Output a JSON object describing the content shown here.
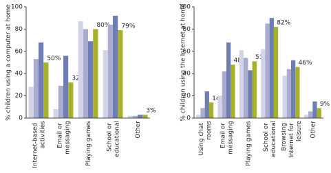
{
  "chart_data": [
    {
      "type": "bar",
      "ylabel": "% children using a computer at home",
      "categories": [
        "Internet-based activities",
        "Email or messaging",
        "Playing games",
        "School or educational",
        "Other"
      ],
      "series": [
        {
          "color": "#d4d4e8",
          "values": [
            28,
            8,
            87,
            61,
            2
          ]
        },
        {
          "color": "#a9abcf",
          "values": [
            53,
            29,
            80,
            84,
            2
          ]
        },
        {
          "color": "#6f7eb2",
          "values": [
            68,
            56,
            69,
            92,
            3
          ]
        },
        {
          "color": "#a6b128",
          "values": [
            50,
            32,
            80,
            79,
            3
          ],
          "value_labels": [
            "50%",
            "32%",
            "80%",
            "79%",
            "3%"
          ]
        }
      ],
      "ylim": [
        0,
        100
      ],
      "yticks": [
        0,
        20,
        40,
        60,
        80,
        100
      ]
    },
    {
      "type": "bar",
      "ylabel": "% children using the Internet at home",
      "categories": [
        "Using chat rooms",
        "Email or messaging",
        "Playing games",
        "School or educational",
        "Browsing Internet for leisure",
        "Other"
      ],
      "series": [
        {
          "color": "#d4d4e8",
          "values": [
            3,
            20,
            61,
            62,
            38,
            3
          ]
        },
        {
          "color": "#a9abcf",
          "values": [
            9,
            42,
            54,
            85,
            44,
            6
          ]
        },
        {
          "color": "#6f7eb2",
          "values": [
            24,
            68,
            43,
            90,
            52,
            15
          ]
        },
        {
          "color": "#a6b128",
          "values": [
            14,
            48,
            51,
            82,
            46,
            9
          ],
          "value_labels": [
            "14%",
            "48%",
            "51%",
            "82%",
            "46%",
            "9%"
          ]
        }
      ],
      "ylim": [
        0,
        100
      ],
      "yticks": [
        0,
        20,
        40,
        60,
        80,
        100
      ]
    }
  ]
}
